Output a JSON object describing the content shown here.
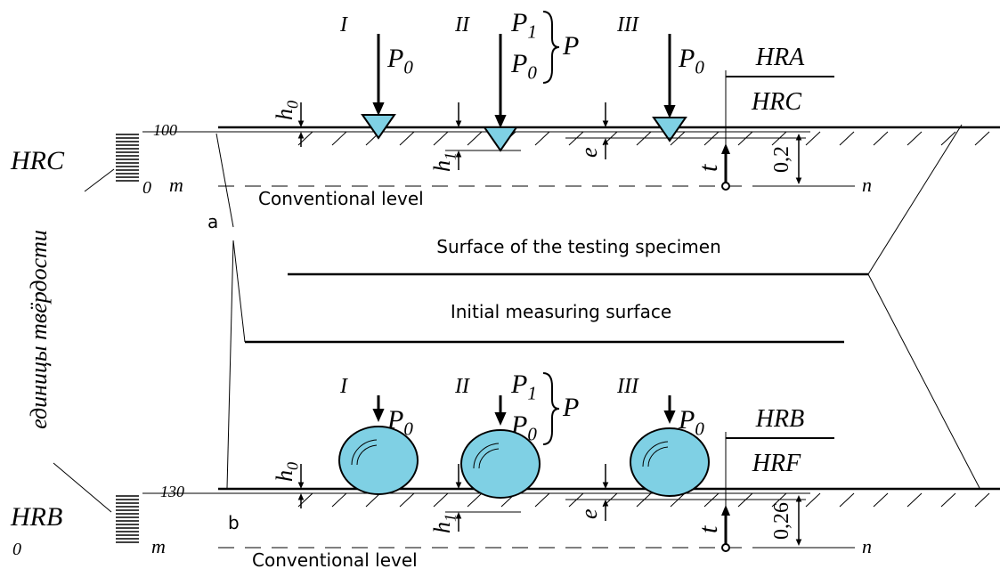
{
  "top": {
    "scale_name": "HRC",
    "scale_top": "100",
    "scale_zero": "0",
    "m": "m",
    "n": "n",
    "conventional_level": "Conventional level",
    "letter": "a",
    "stages": [
      {
        "numeral": "I",
        "forces": [
          {
            "base": "P",
            "sub": "0"
          }
        ]
      },
      {
        "numeral": "II",
        "forces": [
          {
            "base": "P",
            "sub": "1"
          },
          {
            "base": "P",
            "sub": "0"
          }
        ],
        "total": "P"
      },
      {
        "numeral": "III",
        "forces": [
          {
            "base": "P",
            "sub": "0"
          }
        ]
      }
    ],
    "scales": [
      "HRA",
      "HRC"
    ],
    "h0": {
      "base": "h",
      "sub": "0"
    },
    "h1": {
      "base": "h",
      "sub": "1"
    },
    "e": "e",
    "t": "t",
    "depth": "0,2"
  },
  "middle": {
    "surface_label": "Surface of the testing specimen",
    "initial_label": "Initial measuring surface",
    "units_label": "единицы твёрдости"
  },
  "bottom": {
    "scale_name": "HRB",
    "scale_top": "130",
    "scale_zero": "0",
    "m": "m",
    "n": "n",
    "conventional_level": "Conventional level",
    "letter": "b",
    "stages": [
      {
        "numeral": "I",
        "forces": [
          {
            "base": "P",
            "sub": "0"
          }
        ]
      },
      {
        "numeral": "II",
        "forces": [
          {
            "base": "P",
            "sub": "1"
          },
          {
            "base": "P",
            "sub": "0"
          }
        ],
        "total": "P"
      },
      {
        "numeral": "III",
        "forces": [
          {
            "base": "P",
            "sub": "0"
          }
        ]
      }
    ],
    "scales": [
      "HRB",
      "HRF"
    ],
    "h0": {
      "base": "h",
      "sub": "0"
    },
    "h1": {
      "base": "h",
      "sub": "1"
    },
    "e": "e",
    "t": "t",
    "depth": "0,26"
  }
}
